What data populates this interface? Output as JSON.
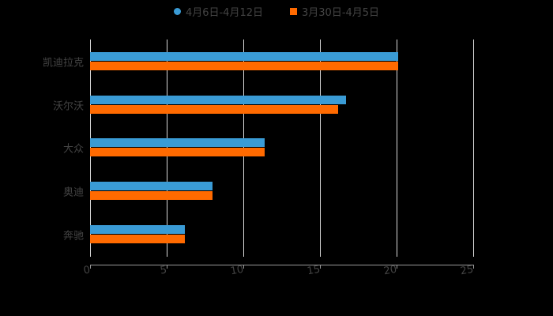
{
  "chart_data": {
    "type": "bar",
    "orientation": "horizontal",
    "title": "",
    "xlabel": "",
    "ylabel": "",
    "categories": [
      "凯迪拉克",
      "沃尔沃",
      "大众",
      "奥迪",
      "奔驰"
    ],
    "series": [
      {
        "name": "4月6日-4月12日",
        "color": "#3A9BD5",
        "marker": "circle",
        "values": [
          20.1,
          16.7,
          11.4,
          8.0,
          6.2
        ]
      },
      {
        "name": "3月30日-4月5日",
        "color": "#FF6A00",
        "marker": "square",
        "values": [
          20.1,
          16.2,
          11.4,
          8.0,
          6.2
        ]
      }
    ],
    "xlim": [
      0,
      25
    ],
    "xticks": [
      "0",
      "5",
      "10",
      "15",
      "20",
      "25"
    ],
    "grid": true,
    "legend_position": "top"
  },
  "legend": [
    {
      "label": "4月6日-4月12日",
      "color": "#3A9BD5"
    },
    {
      "label": "3月30日-4月5日",
      "color": "#FF6A00"
    }
  ]
}
